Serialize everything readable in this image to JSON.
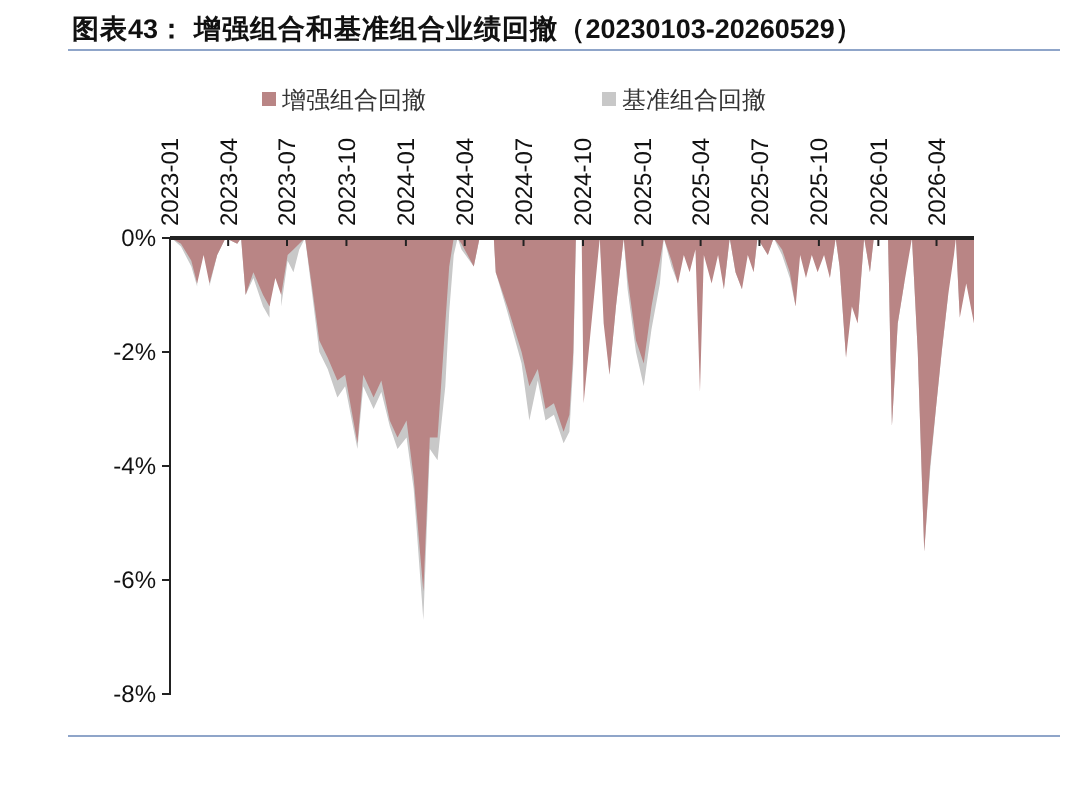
{
  "chart_data": {
    "type": "area",
    "title": "图表43：  增强组合和基准组合业绩回撤（20230103-20260529）",
    "x": [
      "2023-01-03",
      "2023-01-18",
      "2023-02-03",
      "2023-02-12",
      "2023-02-22",
      "2023-03-03",
      "2023-03-15",
      "2023-03-28",
      "2023-04-15",
      "2023-04-21",
      "2023-04-28",
      "2023-05-10",
      "2023-05-25",
      "2023-06-04",
      "2023-06-13",
      "2023-06-22",
      "2023-07-02",
      "2023-07-11",
      "2023-07-20",
      "2023-07-29",
      "2023-08-08",
      "2023-08-20",
      "2023-09-02",
      "2023-09-17",
      "2023-09-29",
      "2023-10-18",
      "2023-10-27",
      "2023-11-12",
      "2023-11-24",
      "2023-12-07",
      "2023-12-19",
      "2024-01-02",
      "2024-01-13",
      "2024-01-28",
      "2024-02-07",
      "2024-02-19",
      "2024-03-02",
      "2024-03-08",
      "2024-03-15",
      "2024-03-21",
      "2024-03-27",
      "2024-04-15",
      "2024-04-24",
      "2024-05-16",
      "2024-05-19",
      "2024-06-06",
      "2024-06-28",
      "2024-07-10",
      "2024-07-23",
      "2024-08-04",
      "2024-08-17",
      "2024-09-01",
      "2024-09-10",
      "2024-09-16",
      "2024-09-20",
      "2024-09-29",
      "2024-10-02",
      "2024-10-14",
      "2024-10-27",
      "2024-11-02",
      "2024-11-11",
      "2024-11-21",
      "2024-12-03",
      "2024-12-09",
      "2024-12-22",
      "2025-01-03",
      "2025-01-15",
      "2025-01-28",
      "2025-02-03",
      "2025-02-15",
      "2025-02-25",
      "2025-03-06",
      "2025-03-15",
      "2025-03-24",
      "2025-03-31",
      "2025-04-06",
      "2025-04-18",
      "2025-04-28",
      "2025-05-07",
      "2025-05-16",
      "2025-05-25",
      "2025-06-04",
      "2025-06-13",
      "2025-06-22",
      "2025-06-28",
      "2025-07-14",
      "2025-07-23",
      "2025-08-05",
      "2025-08-17",
      "2025-08-26",
      "2025-09-02",
      "2025-09-11",
      "2025-09-20",
      "2025-09-29",
      "2025-10-09",
      "2025-10-18",
      "2025-10-27",
      "2025-11-02",
      "2025-11-12",
      "2025-11-21",
      "2025-11-30",
      "2025-12-10",
      "2025-12-19",
      "2025-12-25",
      "2026-01-16",
      "2026-01-22",
      "2026-01-31",
      "2026-02-10",
      "2026-02-19",
      "2026-02-22",
      "2026-03-03",
      "2026-03-13",
      "2026-03-22",
      "2026-03-31",
      "2026-04-09",
      "2026-04-19",
      "2026-04-28",
      "2026-05-01",
      "2026-05-07",
      "2026-05-17",
      "2026-05-29"
    ],
    "series": [
      {
        "name": "基准组合回撤",
        "color": "#c8c8c8",
        "values": [
          0,
          -0.15,
          -0.5,
          -0.85,
          null,
          -0.85,
          -0.3,
          0,
          -0.1,
          0,
          -1.0,
          -0.7,
          -1.2,
          -1.4,
          null,
          -1.2,
          -0.4,
          -0.6,
          -0.2,
          0,
          -0.9,
          -2.0,
          -2.3,
          -2.8,
          -2.6,
          -3.7,
          -2.6,
          -3.0,
          -2.7,
          -3.3,
          -3.7,
          -3.5,
          -4.4,
          -6.7,
          -3.7,
          -3.9,
          -2.6,
          -1.3,
          -0.3,
          0,
          -0.2,
          -0.5,
          0,
          0,
          -0.6,
          -1.3,
          -2.2,
          -3.2,
          -2.5,
          -3.2,
          -3.1,
          -3.6,
          -3.4,
          -2.2,
          0,
          0,
          -1.0,
          null,
          0,
          -1.2,
          -2.4,
          -1.2,
          0,
          -0.9,
          -2.0,
          -2.6,
          -1.6,
          -0.8,
          0,
          -0.5,
          -0.8,
          null,
          null,
          null,
          null,
          null,
          null,
          null,
          -0.9,
          0,
          -0.6,
          -0.9,
          null,
          -0.6,
          0,
          -0.3,
          0,
          -0.3,
          -0.7,
          -1.2,
          null,
          null,
          null,
          null,
          null,
          -0.7,
          0,
          -0.5,
          -2.1,
          null,
          -1.5,
          0,
          -0.6,
          0,
          0,
          -3.3,
          -1.5,
          -0.8,
          null,
          0,
          -2.0,
          -5.5,
          -4.1,
          -3.0,
          -2.0,
          -1.0,
          null,
          0,
          -1.4,
          null,
          null
        ]
      },
      {
        "name": "增强组合回撤",
        "color": "#b98585",
        "values": [
          0,
          -0.1,
          -0.4,
          -0.8,
          -0.3,
          -0.8,
          -0.3,
          0,
          -0.1,
          0,
          -1.0,
          -0.6,
          -1.0,
          -1.2,
          -0.7,
          -1.0,
          -0.3,
          -0.2,
          -0.1,
          0,
          -0.8,
          -1.8,
          -2.1,
          -2.5,
          -2.4,
          -3.6,
          -2.4,
          -2.8,
          -2.5,
          -3.2,
          -3.5,
          -3.2,
          -4.2,
          -6.2,
          -3.5,
          -3.5,
          -1.5,
          -0.5,
          0,
          0,
          -0.1,
          -0.5,
          0,
          0,
          -0.6,
          -1.2,
          -2.0,
          -2.6,
          -2.3,
          -3.0,
          -2.9,
          -3.4,
          -3.1,
          -2.0,
          0,
          0,
          -2.9,
          -1.5,
          0,
          -1.5,
          -2.4,
          -1.2,
          0,
          -0.7,
          -1.8,
          -2.2,
          -1.2,
          -0.4,
          0,
          -0.4,
          -0.8,
          -0.3,
          -0.6,
          -0.2,
          -2.7,
          -0.3,
          -0.8,
          -0.3,
          -0.9,
          0,
          -0.6,
          -0.9,
          -0.3,
          -0.6,
          0,
          -0.3,
          0,
          -0.2,
          -0.6,
          -1.2,
          -0.3,
          -0.7,
          -0.3,
          -0.6,
          -0.3,
          -0.7,
          0,
          -0.5,
          -2.1,
          -1.2,
          -1.5,
          0,
          -0.6,
          0,
          0,
          -3.3,
          -1.5,
          -0.8,
          -0.2,
          0,
          -2.0,
          -5.5,
          -4.0,
          -3.0,
          -2.0,
          -1.0,
          -0.3,
          0,
          -1.4,
          -0.8,
          -1.5
        ]
      }
    ],
    "xlim": [
      "2023-01-01",
      "2026-05-29"
    ],
    "xticks": [
      "2023-01",
      "2023-04",
      "2023-07",
      "2023-10",
      "2024-01",
      "2024-04",
      "2024-07",
      "2024-10",
      "2025-01",
      "2025-04",
      "2025-07",
      "2025-10",
      "2026-01",
      "2026-04"
    ],
    "ylim": [
      -8,
      0
    ],
    "yticks": [
      {
        "value": 0,
        "label": "0%"
      },
      {
        "value": -2,
        "label": "-2%"
      },
      {
        "value": -4,
        "label": "-4%"
      },
      {
        "value": -6,
        "label": "-6%"
      },
      {
        "value": -8,
        "label": "-8%"
      }
    ],
    "legend": "top",
    "grid": false
  }
}
